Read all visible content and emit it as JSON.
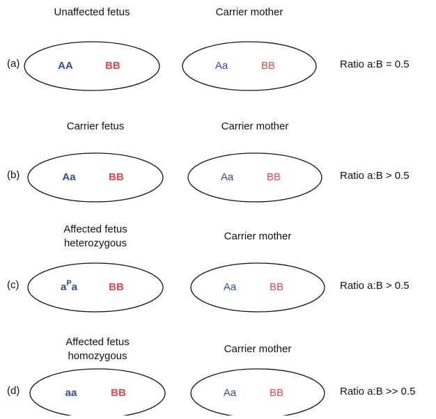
{
  "rows": [
    {
      "label": "(a)",
      "fetus_title": [
        "Unaffected fetus"
      ],
      "fetus_genotype": "AA",
      "fetus_other": "BB",
      "mother_title": "Carrier mother",
      "mother_genotype": "Aa",
      "mother_other": "BB",
      "ratio": "Ratio a:B = 0.5"
    },
    {
      "label": "(b)",
      "fetus_title": [
        "Carrier fetus"
      ],
      "fetus_genotype": "Aa",
      "fetus_other": "BB",
      "mother_title": "Carrier mother",
      "mother_genotype": "Aa",
      "mother_other": "BB",
      "ratio": "Ratio a:B > 0.5"
    },
    {
      "label": "(c)",
      "fetus_title": [
        "Affected fetus",
        "heterozygous"
      ],
      "fetus_genotype": {
        "text": "a",
        "sup": "P",
        "tail": "a"
      },
      "fetus_other": "BB",
      "mother_title": "Carrier mother",
      "mother_genotype": "Aa",
      "mother_other": "BB",
      "ratio": "Ratio a:B > 0.5"
    },
    {
      "label": "(d)",
      "fetus_title": [
        "Affected fetus",
        "homozygous"
      ],
      "fetus_genotype": "aa",
      "fetus_other": "BB",
      "mother_title": "Carrier mother",
      "mother_genotype": "Aa",
      "mother_other": "BB",
      "ratio": "Ratio a:B >> 0.5"
    }
  ]
}
